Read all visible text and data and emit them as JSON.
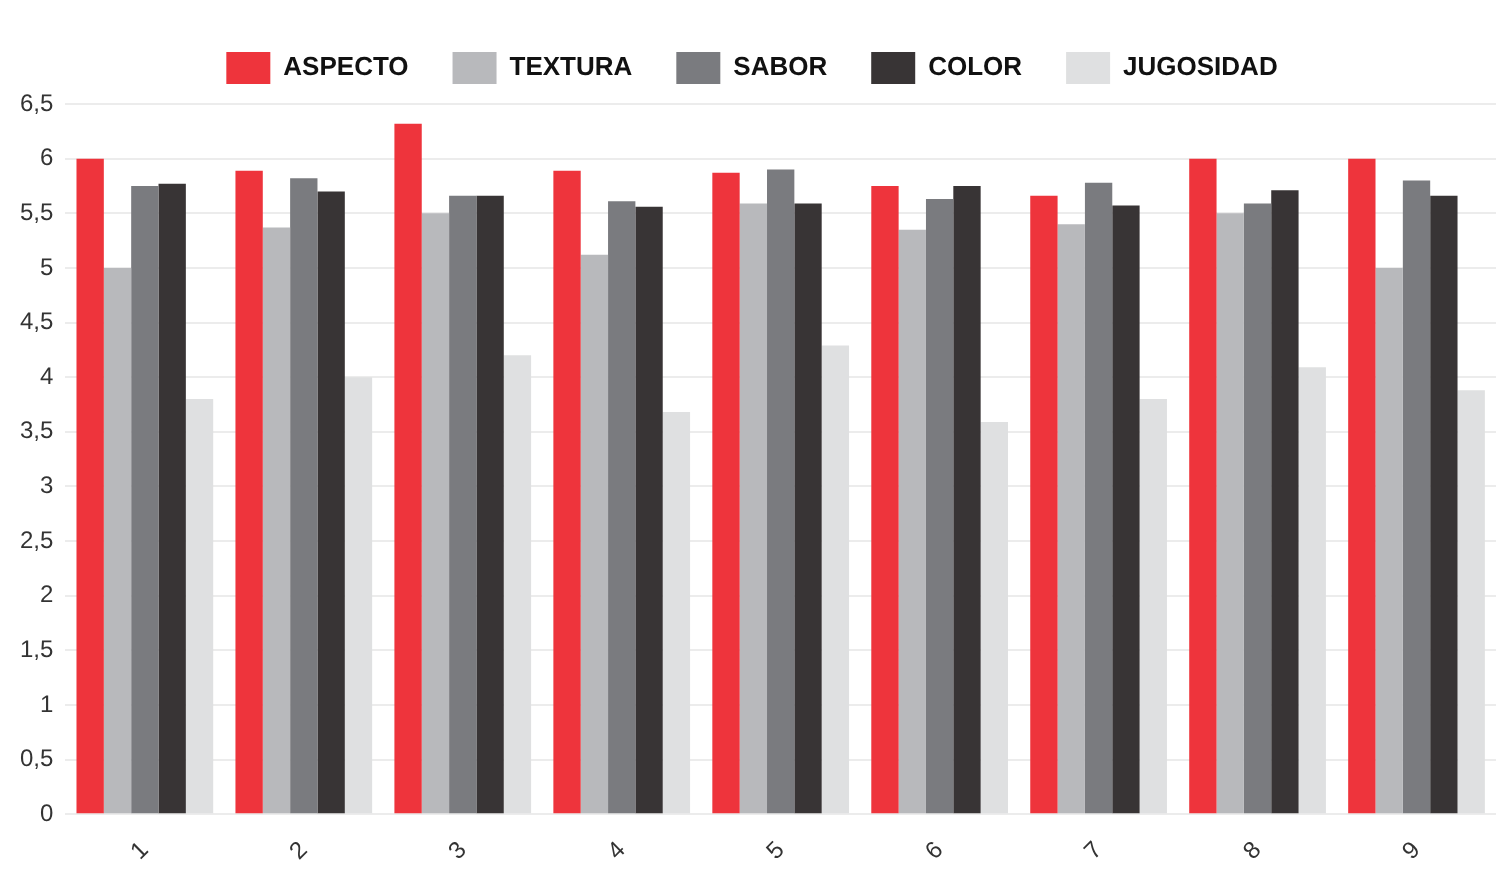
{
  "chart_data": {
    "type": "bar",
    "categories": [
      "1",
      "2",
      "3",
      "4",
      "5",
      "6",
      "7",
      "8",
      "9"
    ],
    "series": [
      {
        "name": "ASPECTO",
        "color": "#ee343c",
        "values": [
          6.0,
          5.89,
          6.32,
          5.89,
          5.87,
          5.75,
          5.66,
          6.0,
          6.0
        ]
      },
      {
        "name": "TEXTURA",
        "color": "#b8b9bc",
        "values": [
          5.0,
          5.37,
          5.5,
          5.12,
          5.59,
          5.35,
          5.4,
          5.5,
          5.0
        ]
      },
      {
        "name": "SABOR",
        "color": "#7a7b7f",
        "values": [
          5.75,
          5.82,
          5.66,
          5.61,
          5.9,
          5.63,
          5.78,
          5.59,
          5.8
        ]
      },
      {
        "name": "COLOR",
        "color": "#383435",
        "values": [
          5.77,
          5.7,
          5.66,
          5.56,
          5.59,
          5.75,
          5.57,
          5.71,
          5.66
        ]
      },
      {
        "name": "JUGOSIDAD",
        "color": "#dfe0e1",
        "values": [
          3.8,
          4.0,
          4.2,
          3.68,
          4.29,
          3.59,
          3.8,
          4.09,
          3.88
        ]
      }
    ],
    "ylim": [
      0,
      6.5
    ],
    "yticks": [
      0,
      {
        "value": 0.5,
        "label": "0,5"
      },
      1,
      {
        "value": 1.5,
        "label": "1,5"
      },
      2,
      {
        "value": 2.5,
        "label": "2,5"
      },
      3,
      {
        "value": 3.5,
        "label": "3,5"
      },
      4,
      {
        "value": 4.5,
        "label": "4,5"
      },
      5,
      {
        "value": 5.5,
        "label": "5,5"
      },
      6,
      {
        "value": 6.5,
        "label": "6,5"
      }
    ],
    "grid": "y",
    "legend": "top"
  }
}
